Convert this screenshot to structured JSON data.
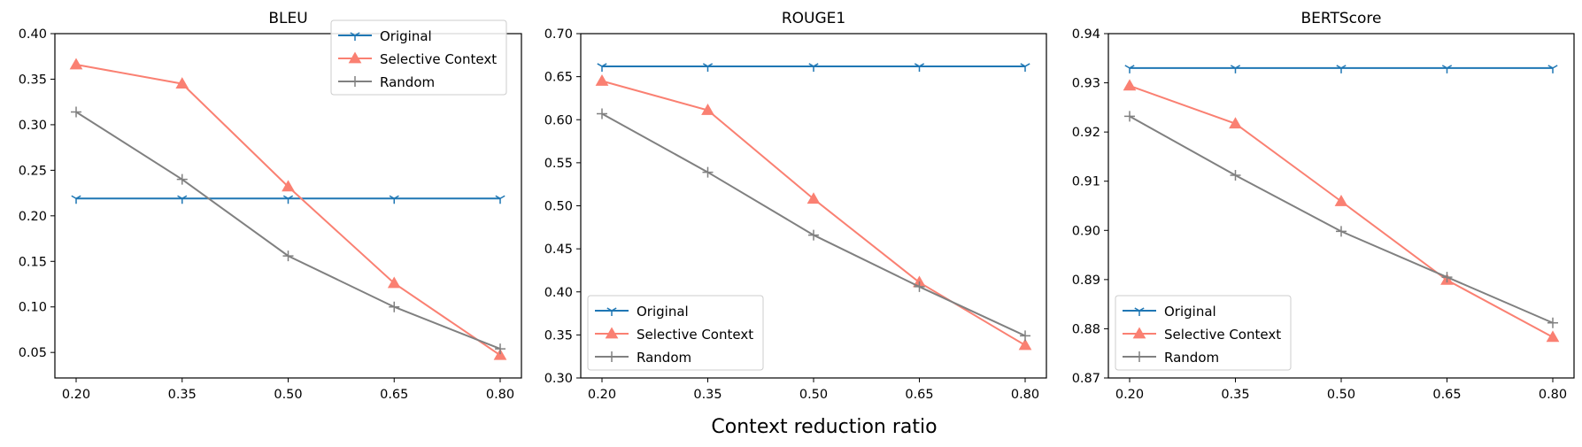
{
  "figure": {
    "xlabel": "Context reduction ratio"
  },
  "colors": {
    "Original": "#1f77b4",
    "Selective Context": "#fa8072",
    "Random": "#808080"
  },
  "chart_data": [
    {
      "type": "line",
      "title": "BLEU",
      "xlabel": "",
      "ylabel": "",
      "x": [
        0.2,
        0.35,
        0.5,
        0.65,
        0.8
      ],
      "xticks": [
        "0.20",
        "0.35",
        "0.50",
        "0.65",
        "0.80"
      ],
      "ylim": [
        0.022,
        0.4
      ],
      "yticks": [
        "0.05",
        "0.10",
        "0.15",
        "0.20",
        "0.25",
        "0.30",
        "0.35",
        "0.40"
      ],
      "ytick_values": [
        0.05,
        0.1,
        0.15,
        0.2,
        0.25,
        0.3,
        0.35,
        0.4
      ],
      "legend": "top-right",
      "grid": false,
      "series": [
        {
          "name": "Original",
          "values": [
            0.219,
            0.219,
            0.219,
            0.219,
            0.219
          ],
          "marker": "tri-down"
        },
        {
          "name": "Selective Context",
          "values": [
            0.366,
            0.345,
            0.232,
            0.126,
            0.047
          ],
          "marker": "triangle"
        },
        {
          "name": "Random",
          "values": [
            0.314,
            0.24,
            0.156,
            0.1,
            0.054
          ],
          "marker": "plus"
        }
      ]
    },
    {
      "type": "line",
      "title": "ROUGE1",
      "xlabel": "",
      "ylabel": "",
      "x": [
        0.2,
        0.35,
        0.5,
        0.65,
        0.8
      ],
      "xticks": [
        "0.20",
        "0.35",
        "0.50",
        "0.65",
        "0.80"
      ],
      "ylim": [
        0.3,
        0.7
      ],
      "yticks": [
        "0.30",
        "0.35",
        "0.40",
        "0.45",
        "0.50",
        "0.55",
        "0.60",
        "0.65",
        "0.70"
      ],
      "ytick_values": [
        0.3,
        0.35,
        0.4,
        0.45,
        0.5,
        0.55,
        0.6,
        0.65,
        0.7
      ],
      "legend": "lower-left",
      "grid": false,
      "series": [
        {
          "name": "Original",
          "values": [
            0.662,
            0.662,
            0.662,
            0.662,
            0.662
          ],
          "marker": "tri-down"
        },
        {
          "name": "Selective Context",
          "values": [
            0.645,
            0.611,
            0.508,
            0.411,
            0.338
          ],
          "marker": "triangle"
        },
        {
          "name": "Random",
          "values": [
            0.607,
            0.539,
            0.466,
            0.406,
            0.349
          ],
          "marker": "plus"
        }
      ]
    },
    {
      "type": "line",
      "title": "BERTScore",
      "xlabel": "",
      "ylabel": "",
      "x": [
        0.2,
        0.35,
        0.5,
        0.65,
        0.8
      ],
      "xticks": [
        "0.20",
        "0.35",
        "0.50",
        "0.65",
        "0.80"
      ],
      "ylim": [
        0.87,
        0.94
      ],
      "yticks": [
        "0.87",
        "0.88",
        "0.89",
        "0.90",
        "0.91",
        "0.92",
        "0.93",
        "0.94"
      ],
      "ytick_values": [
        0.87,
        0.88,
        0.89,
        0.9,
        0.91,
        0.92,
        0.93,
        0.94
      ],
      "legend": "lower-left",
      "grid": false,
      "series": [
        {
          "name": "Original",
          "values": [
            0.933,
            0.933,
            0.933,
            0.933,
            0.933
          ],
          "marker": "tri-down"
        },
        {
          "name": "Selective Context",
          "values": [
            0.9294,
            0.9217,
            0.9059,
            0.8899,
            0.8783
          ],
          "marker": "triangle"
        },
        {
          "name": "Random",
          "values": [
            0.9232,
            0.9112,
            0.8998,
            0.8905,
            0.8812
          ],
          "marker": "plus"
        }
      ]
    }
  ]
}
